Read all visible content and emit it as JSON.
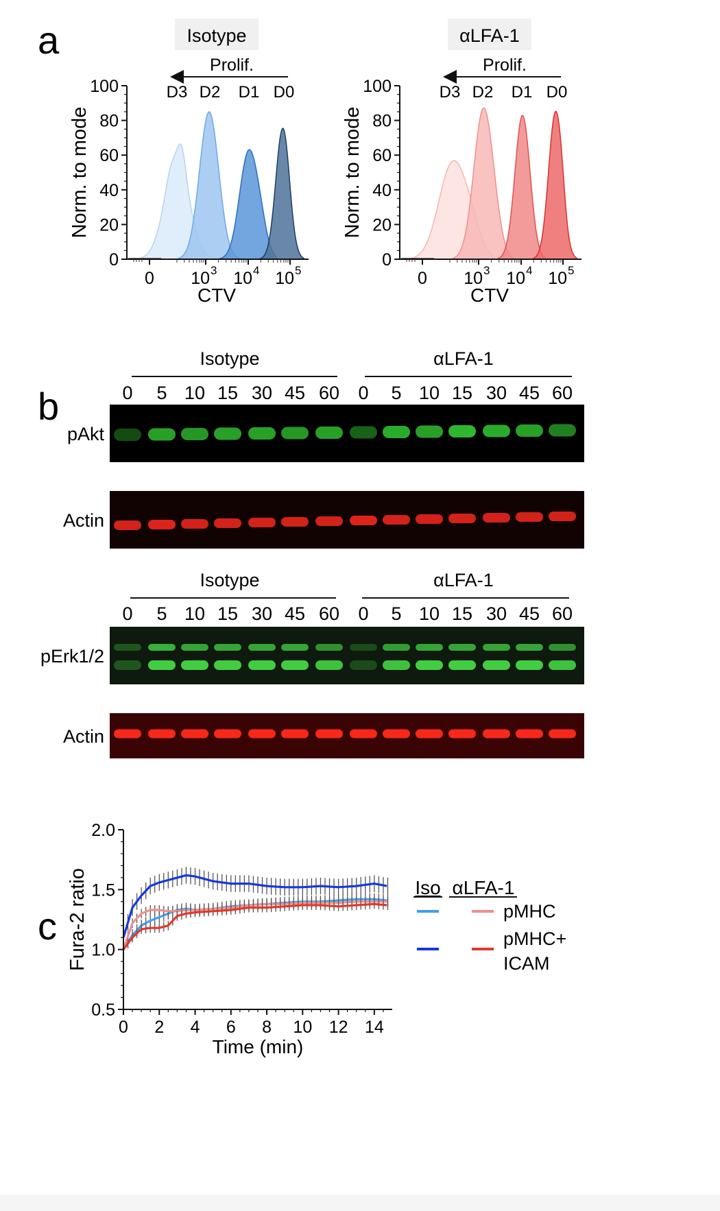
{
  "panel_a": {
    "letter": "a",
    "charts": [
      {
        "title": "Isotype",
        "arrow_label": "Prolif.",
        "division_labels": [
          "D3",
          "D2",
          "D1",
          "D0"
        ],
        "ylabel": "Norm. to mode",
        "xlabel": "CTV",
        "yticks": [
          "0",
          "20",
          "40",
          "60",
          "80",
          "100"
        ],
        "xticks": [
          "0",
          "10",
          "10",
          "10"
        ],
        "xtick_sup": [
          "",
          "3",
          "4",
          "5"
        ],
        "colors": [
          "#dbeaf9",
          "#9cc6f0",
          "#5b95d8",
          "#4f739a"
        ],
        "strokes": [
          "#b6d3f1",
          "#6aa9e8",
          "#2e6cc4",
          "#1c3d66"
        ]
      },
      {
        "title": "αLFA-1",
        "arrow_label": "Prolif.",
        "division_labels": [
          "D3",
          "D2",
          "D1",
          "D0"
        ],
        "ylabel": "Norm. to mode",
        "xlabel": "CTV",
        "yticks": [
          "0",
          "20",
          "40",
          "60",
          "80",
          "100"
        ],
        "xticks": [
          "0",
          "10",
          "10",
          "10"
        ],
        "xtick_sup": [
          "",
          "3",
          "4",
          "5"
        ],
        "colors": [
          "#fde0df",
          "#f8b9b7",
          "#f08a88",
          "#ec6a68"
        ],
        "strokes": [
          "#f4b5b3",
          "#ef8f8c",
          "#e34e4b",
          "#d8302d"
        ]
      }
    ]
  },
  "panel_b": {
    "letter": "b",
    "group_labels": [
      "Isotype",
      "αLFA-1"
    ],
    "timepoints": [
      "0",
      "5",
      "10",
      "15",
      "30",
      "45",
      "60"
    ],
    "blots": [
      {
        "label": "pAkt",
        "color": "#36d636",
        "bg": "#000000"
      },
      {
        "label": "Actin",
        "color": "#e8261c",
        "bg": "#120303"
      },
      {
        "label": "pErk1/2",
        "color": "#48e048",
        "bg": "#0d1a0d"
      },
      {
        "label": "Actin",
        "color": "#ff2a1a",
        "bg": "#3a0404"
      }
    ]
  },
  "panel_c": {
    "letter": "c",
    "chart_data": {
      "type": "line",
      "ylabel": "Fura-2 ratio",
      "xlabel": "Time (min)",
      "ylim": [
        0.5,
        2.0
      ],
      "xlim": [
        0,
        15
      ],
      "yticks": [
        "0.5",
        "1.0",
        "1.5",
        "2.0"
      ],
      "xticks": [
        "0",
        "2",
        "4",
        "6",
        "8",
        "10",
        "12",
        "14"
      ],
      "legend": {
        "headers": [
          "Iso",
          "αLFA-1"
        ],
        "rows": [
          {
            "label": "pMHC",
            "iso_color": "#3fa0ec",
            "lfa_color": "#ef8f8d"
          },
          {
            "label_line1": "pMHC+",
            "label_line2": "ICAM",
            "iso_color": "#1538e0",
            "lfa_color": "#e3372a"
          }
        ]
      },
      "series": [
        {
          "name": "Iso pMHC+ICAM",
          "color": "#1538e0",
          "x": [
            0,
            0.5,
            1,
            1.5,
            2,
            2.5,
            3,
            3.5,
            4,
            5,
            6,
            7,
            8,
            9,
            10,
            11,
            12,
            13,
            14,
            14.7
          ],
          "y": [
            1.1,
            1.35,
            1.45,
            1.53,
            1.56,
            1.58,
            1.6,
            1.62,
            1.61,
            1.57,
            1.55,
            1.55,
            1.53,
            1.52,
            1.52,
            1.53,
            1.52,
            1.53,
            1.55,
            1.53
          ],
          "err": 0.07
        },
        {
          "name": "Iso pMHC",
          "color": "#3fa0ec",
          "x": [
            0,
            0.5,
            1,
            1.5,
            2,
            2.5,
            3,
            3.5,
            4,
            5,
            6,
            7,
            8,
            9,
            10,
            11,
            12,
            13,
            14,
            14.7
          ],
          "y": [
            1.0,
            1.12,
            1.2,
            1.24,
            1.27,
            1.3,
            1.33,
            1.34,
            1.33,
            1.34,
            1.36,
            1.37,
            1.38,
            1.39,
            1.4,
            1.4,
            1.41,
            1.42,
            1.42,
            1.41
          ],
          "err": 0.05
        },
        {
          "name": "αLFA-1 pMHC",
          "color": "#ef8f8d",
          "x": [
            0,
            0.5,
            1,
            1.5,
            2,
            2.5,
            3,
            3.5,
            4,
            5,
            6,
            7,
            8,
            9,
            10,
            11,
            12,
            13,
            14,
            14.7
          ],
          "y": [
            1.0,
            1.22,
            1.3,
            1.33,
            1.33,
            1.32,
            1.32,
            1.33,
            1.33,
            1.34,
            1.35,
            1.37,
            1.38,
            1.38,
            1.39,
            1.39,
            1.39,
            1.4,
            1.4,
            1.4
          ],
          "err": 0.04
        },
        {
          "name": "αLFA-1 pMHC+ICAM",
          "color": "#e3372a",
          "x": [
            0,
            0.5,
            1,
            1.5,
            2,
            2.5,
            3,
            3.5,
            4,
            5,
            6,
            7,
            8,
            9,
            10,
            11,
            12,
            13,
            14,
            14.7
          ],
          "y": [
            1.0,
            1.1,
            1.17,
            1.18,
            1.18,
            1.2,
            1.28,
            1.3,
            1.31,
            1.32,
            1.33,
            1.35,
            1.35,
            1.36,
            1.37,
            1.37,
            1.36,
            1.37,
            1.38,
            1.37
          ],
          "err": 0.04
        }
      ]
    }
  }
}
